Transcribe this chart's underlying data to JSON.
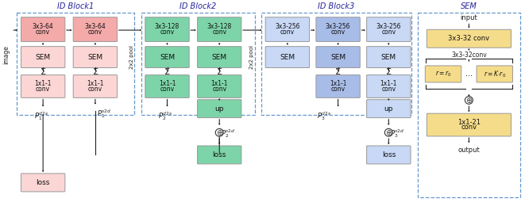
{
  "bg_color": "#ffffff",
  "fig_width": 6.61,
  "fig_height": 2.6,
  "dpi": 100,
  "colors": {
    "pink": "#f5aaaa",
    "light_pink": "#fcd5d5",
    "green": "#7dd4a8",
    "light_green": "#b8ecd4",
    "blue": "#a8bce8",
    "light_blue": "#c8d8f5",
    "yellow": "#f5dc8a",
    "dashed_border": "#6699cc",
    "text_dark": "#222222"
  },
  "title_block1": "ID Block1",
  "title_block2": "ID Block2",
  "title_block3": "ID Block3",
  "title_sem": "SEM"
}
